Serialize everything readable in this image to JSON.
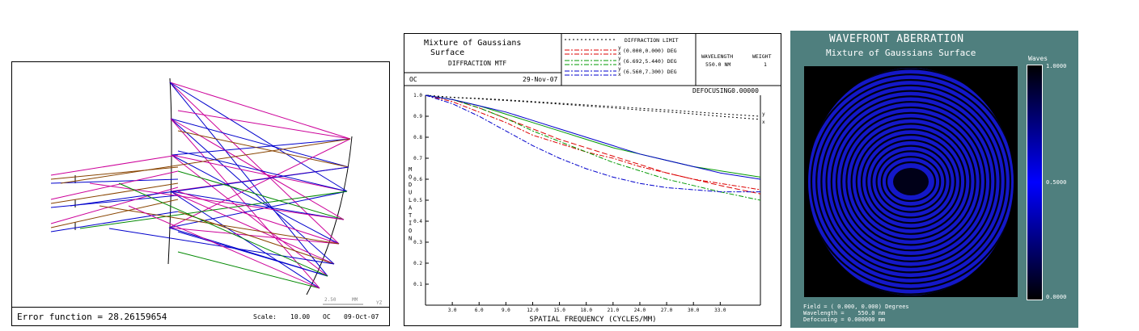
{
  "layout_panel": {
    "error_label": "Error function = 28.26159654",
    "scale_label": "Scale:",
    "scale_value": "10.00",
    "oc_label": "OC",
    "date": "09-Oct-07",
    "scalebar_label": "2.50",
    "scalebar_unit": "MM",
    "scalebar_corner": "YZ",
    "ray_colors": [
      "#cc0099",
      "#884400",
      "#0000cc",
      "#008800"
    ]
  },
  "mtf_panel": {
    "title_line1": "Mixture of Gaussians",
    "title_line2": "Surface",
    "subtitle": "DIFFRACTION MTF",
    "oc_label": "OC",
    "date": "29-Nov-07",
    "defocusing": "DEFOCUSING0.00000",
    "wavelength_header": "WAVELENGTH",
    "weight_header": "WEIGHT",
    "wavelength_value": "550.0 NM",
    "weight_value": "1",
    "legend": [
      {
        "label": "DIFFRACTION LIMIT",
        "color": "#000000",
        "dash": "2,3"
      },
      {
        "label": "(0.000,0.000) DEG",
        "color": "#dd0000",
        "dash": "6,2,2,2"
      },
      {
        "label": "(6.692,5.440) DEG",
        "color": "#009900",
        "dash": "6,2,2,2"
      },
      {
        "label": "(6.560,7.300) DEG",
        "color": "#0000cc",
        "dash": "6,2,2,2"
      }
    ],
    "legend_sub_y": "y",
    "legend_sub_x": "x",
    "end_label_y": "y",
    "end_label_x": "x"
  },
  "chart_data": {
    "type": "line",
    "title": "DIFFRACTION MTF",
    "xlabel": "SPATIAL FREQUENCY (CYCLES/MM)",
    "ylabel": "MODULATION",
    "xlim": [
      0,
      37.5
    ],
    "ylim": [
      0,
      1
    ],
    "xticks": [
      "3.0",
      "6.0",
      "9.0",
      "12.0",
      "15.0",
      "18.0",
      "21.0",
      "24.0",
      "27.0",
      "30.0",
      "33.0"
    ],
    "yticks": [
      "0.1",
      "0.2",
      "0.3",
      "0.4",
      "0.5",
      "0.6",
      "0.7",
      "0.8",
      "0.9",
      "1.0"
    ],
    "x": [
      0,
      3,
      6,
      9,
      12,
      15,
      18,
      21,
      24,
      27,
      30,
      33,
      37.5
    ],
    "series": [
      {
        "name": "DIFFRACTION LIMIT y",
        "color": "#000000",
        "dash": "2,3",
        "values": [
          1.0,
          0.99,
          0.985,
          0.978,
          0.97,
          0.962,
          0.954,
          0.946,
          0.938,
          0.93,
          0.921,
          0.912,
          0.9
        ]
      },
      {
        "name": "DIFFRACTION LIMIT x",
        "color": "#000000",
        "dash": "2,3",
        "values": [
          1.0,
          0.99,
          0.983,
          0.975,
          0.967,
          0.958,
          0.949,
          0.94,
          0.93,
          0.921,
          0.911,
          0.9,
          0.885
        ]
      },
      {
        "name": "(0.000,0.000) DEG y",
        "color": "#dd0000",
        "dash": "7,3",
        "values": [
          1.0,
          0.98,
          0.94,
          0.89,
          0.84,
          0.79,
          0.75,
          0.71,
          0.67,
          0.63,
          0.6,
          0.57,
          0.53
        ]
      },
      {
        "name": "(0.000,0.000) DEG x",
        "color": "#dd0000",
        "dash": "6,2,2,2",
        "values": [
          1.0,
          0.97,
          0.92,
          0.87,
          0.81,
          0.77,
          0.73,
          0.7,
          0.66,
          0.63,
          0.6,
          0.58,
          0.55
        ]
      },
      {
        "name": "(6.692,5.440) DEG y",
        "color": "#009900",
        "dash": "none",
        "values": [
          1.0,
          0.98,
          0.95,
          0.91,
          0.87,
          0.83,
          0.79,
          0.75,
          0.72,
          0.69,
          0.66,
          0.64,
          0.61
        ]
      },
      {
        "name": "(6.692,5.440) DEG x",
        "color": "#009900",
        "dash": "6,2,2,2",
        "values": [
          1.0,
          0.98,
          0.94,
          0.89,
          0.83,
          0.78,
          0.73,
          0.68,
          0.64,
          0.6,
          0.57,
          0.54,
          0.5
        ]
      },
      {
        "name": "(6.560,7.300) DEG y",
        "color": "#0000cc",
        "dash": "none",
        "values": [
          1.0,
          0.98,
          0.95,
          0.92,
          0.88,
          0.84,
          0.8,
          0.76,
          0.72,
          0.69,
          0.66,
          0.63,
          0.6
        ]
      },
      {
        "name": "(6.560,7.300) DEG x",
        "color": "#0000cc",
        "dash": "6,2,2,2",
        "values": [
          1.0,
          0.96,
          0.9,
          0.83,
          0.76,
          0.7,
          0.65,
          0.61,
          0.58,
          0.56,
          0.55,
          0.54,
          0.54
        ]
      }
    ]
  },
  "wavefront_panel": {
    "title": "WAVEFRONT ABERRATION",
    "subtitle": "Mixture of Gaussians Surface",
    "colorbar_label": "Waves",
    "ticks": [
      "1.0000",
      "0.5000",
      "0.0000"
    ],
    "field": "Field = ( 0.000, 0.000) Degrees",
    "wavelength": "Wavelength =    550.0 nm",
    "defocusing": "Defocusing = 0.000000 mm"
  }
}
